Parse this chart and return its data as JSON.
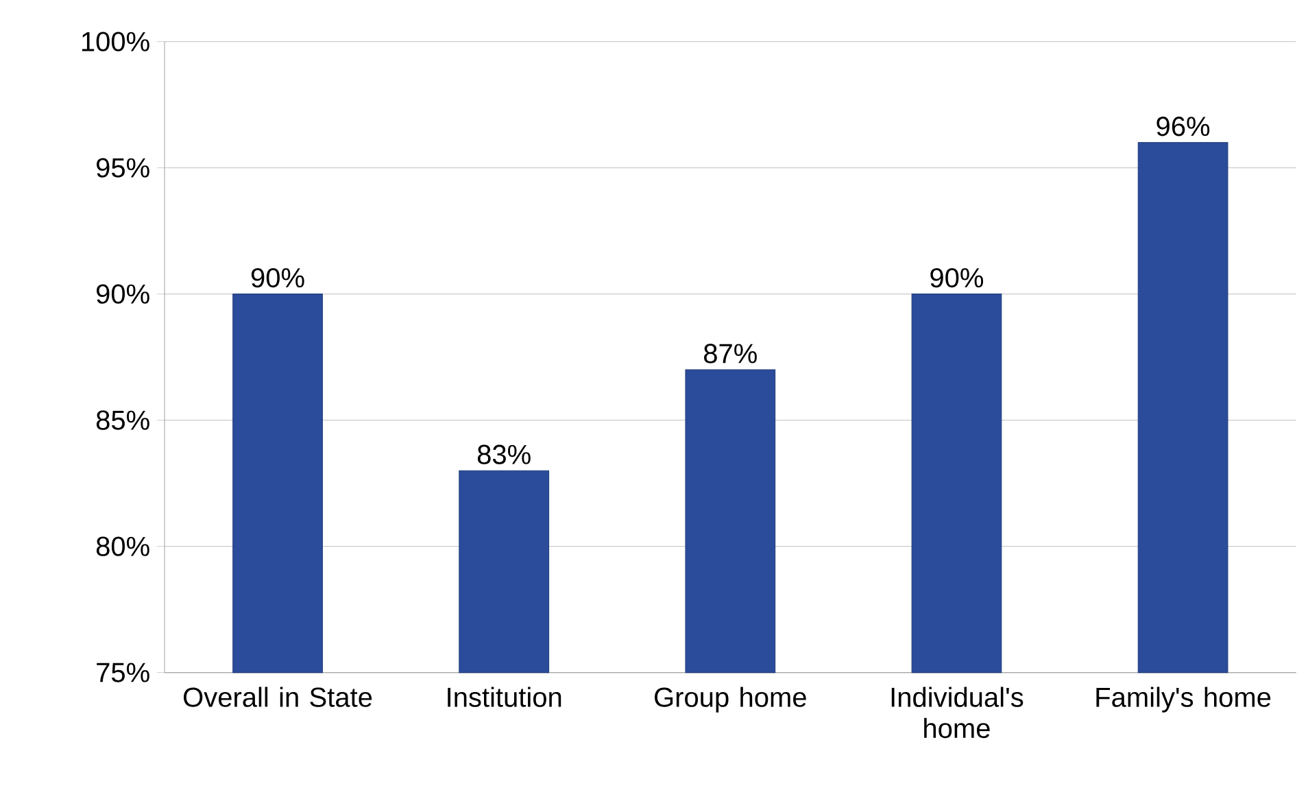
{
  "chart_data": {
    "type": "bar",
    "categories": [
      "Overall in State",
      "Institution",
      "Group home",
      "Individual's home",
      "Family's home"
    ],
    "values": [
      90,
      83,
      87,
      90,
      96
    ],
    "value_labels": [
      "90%",
      "83%",
      "87%",
      "90%",
      "96%"
    ],
    "color": "#2b4c9b",
    "ylim": [
      75,
      100
    ],
    "yticks": [
      {
        "value": 75,
        "label": "75%"
      },
      {
        "value": 80,
        "label": "80%"
      },
      {
        "value": 85,
        "label": "85%"
      },
      {
        "value": 90,
        "label": "90%"
      },
      {
        "value": 95,
        "label": "95%"
      },
      {
        "value": 100,
        "label": "100%"
      }
    ],
    "grid": "y"
  }
}
